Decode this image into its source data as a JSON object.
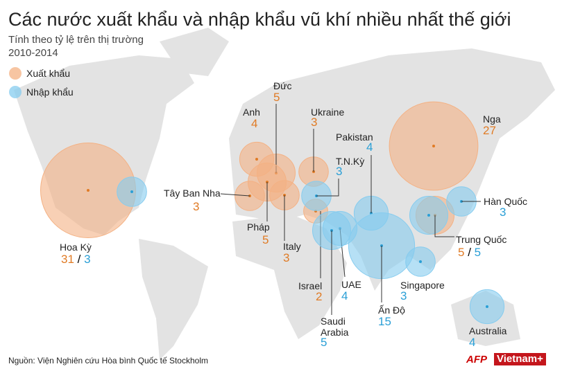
{
  "title": "Các nước xuất khẩu và nhập khẩu vũ khí nhiều nhất thế giới",
  "subtitle": "Tính theo tỷ lệ trên thị trường",
  "period": "2010-2014",
  "legend": {
    "export": "Xuất khẩu",
    "import": "Nhập khẩu"
  },
  "separator": "/",
  "countries": [
    {
      "name": "Hoa Kỳ",
      "export": 31,
      "import": 3
    },
    {
      "name": "Anh",
      "export": 4
    },
    {
      "name": "Đức",
      "export": 5
    },
    {
      "name": "Ukraine",
      "export": 3
    },
    {
      "name": "Tây Ban Nha",
      "export": 3
    },
    {
      "name": "Pháp",
      "export": 5
    },
    {
      "name": "Italy",
      "export": 3
    },
    {
      "name": "Israel",
      "export": 2
    },
    {
      "name": "T.N.Kỳ",
      "import": 3
    },
    {
      "name": "Pakistan",
      "import": 4
    },
    {
      "name": "UAE",
      "import": 4
    },
    {
      "name": "Saudi Arabia",
      "import": 5
    },
    {
      "name": "Ấn Độ",
      "import": 15
    },
    {
      "name": "Singapore",
      "import": 3
    },
    {
      "name": "Trung Quốc",
      "export": 5,
      "import": 5
    },
    {
      "name": "Hàn Quốc",
      "import": 3
    },
    {
      "name": "Nga",
      "export": 27
    },
    {
      "name": "Australia",
      "import": 4
    }
  ],
  "source": "Nguồn: Viện Nghiên cứu Hòa bình Quốc tế Stockholm",
  "logos": [
    "AFP",
    "Vietnam+"
  ]
}
